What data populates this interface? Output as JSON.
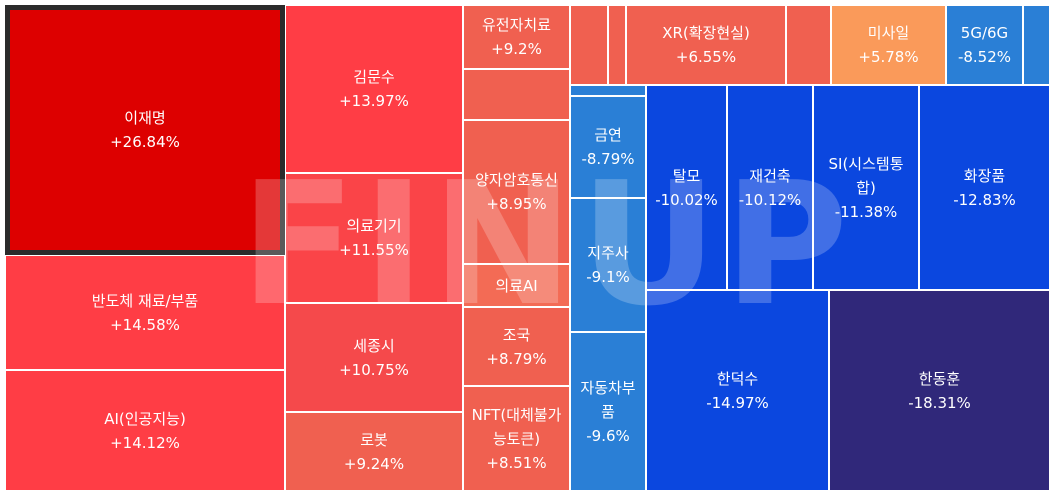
{
  "watermark": "FINUP",
  "chart_data": {
    "type": "treemap",
    "tiles": [
      {
        "name": "이재명",
        "change": "+26.84%",
        "color": "#dd0000",
        "selected": true
      },
      {
        "name": "반도체 재료/부품",
        "change": "+14.58%",
        "color": "#ff3d45"
      },
      {
        "name": "AI(인공지능)",
        "change": "+14.12%",
        "color": "#ff3d45"
      },
      {
        "name": "김문수",
        "change": "+13.97%",
        "color": "#ff3d45"
      },
      {
        "name": "의료기기",
        "change": "+11.55%",
        "color": "#fa4448"
      },
      {
        "name": "세종시",
        "change": "+10.75%",
        "color": "#f5494b"
      },
      {
        "name": "로봇",
        "change": "+9.24%",
        "color": "#f06050"
      },
      {
        "name": "유전자치료",
        "change": "+9.2%",
        "color": "#f06050"
      },
      {
        "name": "",
        "change": "",
        "color": "#f06050"
      },
      {
        "name": "양자암호통신",
        "change": "+8.95%",
        "color": "#f06050"
      },
      {
        "name": "의료AI",
        "change": "",
        "color": "#f36b55"
      },
      {
        "name": "조국",
        "change": "+8.79%",
        "color": "#f06050"
      },
      {
        "name": "NFT(대체불가능토큰)",
        "change": "+8.51%",
        "color": "#f06050"
      },
      {
        "name": "",
        "change": "",
        "color": "#f06050"
      },
      {
        "name": "",
        "change": "",
        "color": "#f06050"
      },
      {
        "name": "XR(확장현실)",
        "change": "+6.55%",
        "color": "#f06050"
      },
      {
        "name": "",
        "change": "",
        "color": "#f06050"
      },
      {
        "name": "미사일",
        "change": "+5.78%",
        "color": "#fa9a5a"
      },
      {
        "name": "5G/6G",
        "change": "-8.52%",
        "color": "#2a7fd6"
      },
      {
        "name": "",
        "change": "",
        "color": "#2a7fd6"
      },
      {
        "name": "",
        "change": "",
        "color": "#2a7fd6"
      },
      {
        "name": "금연",
        "change": "-8.79%",
        "color": "#2a7fd6"
      },
      {
        "name": "지주사",
        "change": "-9.1%",
        "color": "#2a7fd6"
      },
      {
        "name": "자동차부품",
        "change": "-9.6%",
        "color": "#2a7fd6"
      },
      {
        "name": "탈모",
        "change": "-10.02%",
        "color": "#0b47df"
      },
      {
        "name": "재건축",
        "change": "-10.12%",
        "color": "#0b47df"
      },
      {
        "name": "SI(시스템통합)",
        "change": "-11.38%",
        "color": "#0b47df"
      },
      {
        "name": "화장품",
        "change": "-12.83%",
        "color": "#0b47df"
      },
      {
        "name": "한덕수",
        "change": "-14.97%",
        "color": "#0b47df"
      },
      {
        "name": "한동훈",
        "change": "-18.31%",
        "color": "#30287a"
      }
    ]
  }
}
